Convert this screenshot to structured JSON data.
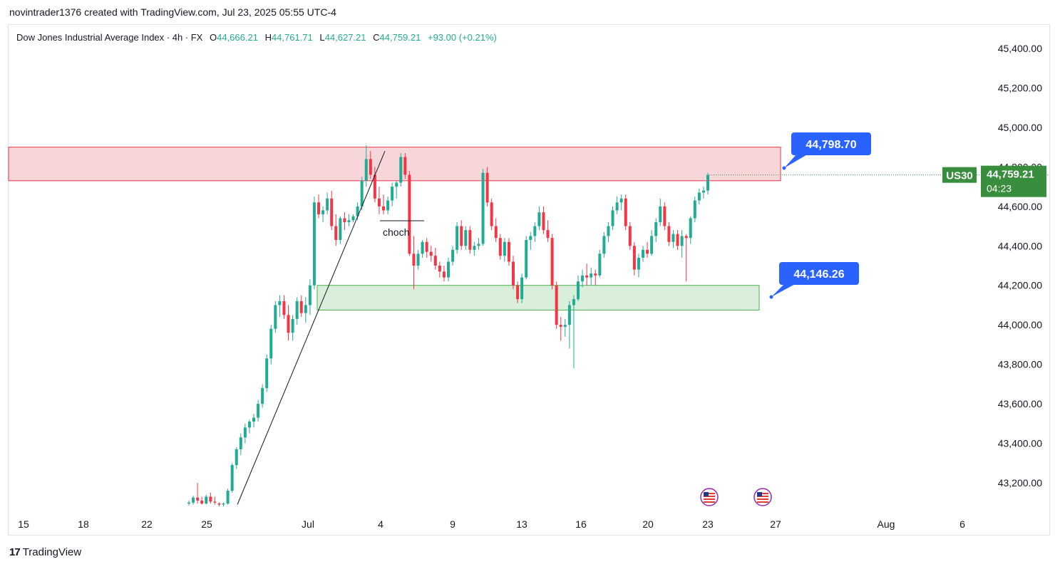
{
  "caption": "novintrader1376 created with TradingView.com, Jul 23, 2025 05:55 UTC-4",
  "legend": {
    "symbol": "Dow Jones Industrial Average Index · 4h · FX",
    "o_label": "O",
    "o": "44,666.21",
    "h_label": "H",
    "h": "44,761.71",
    "l_label": "L",
    "l": "44,627.21",
    "c_label": "C",
    "c": "44,759.21",
    "change": "+93.00 (+0.21%)"
  },
  "brand": "TradingView",
  "colors": {
    "up": "#22ab94",
    "down": "#f23645",
    "resistance_zone": "#f7d6d9",
    "support_zone": "#d9eedb",
    "label_bg": "#2962ff",
    "price_bg": "#388e3c"
  },
  "chart_data": {
    "type": "candlestick",
    "x_ticks": [
      "15",
      "18",
      "22",
      "25",
      "Jul",
      "4",
      "9",
      "13",
      "16",
      "20",
      "23",
      "27",
      "Aug",
      "6"
    ],
    "y_ticks": [
      "45,400.00",
      "45,200.00",
      "45,000.00",
      "44,800.00",
      "44,600.00",
      "44,400.00",
      "44,200.00",
      "44,000.00",
      "43,800.00",
      "43,600.00",
      "43,400.00",
      "43,200.00"
    ],
    "ylim": [
      43080,
      45530
    ],
    "current_price": {
      "symbol": "US30",
      "value": "44,759.21",
      "countdown": "04:23",
      "price": 44759.21
    },
    "zones": [
      {
        "kind": "resistance",
        "low": 44730,
        "high": 44900
      },
      {
        "kind": "support",
        "low": 44075,
        "high": 44200
      }
    ],
    "price_labels": [
      {
        "text": "44,798.70",
        "price": 44798.7
      },
      {
        "text": "44,146.26",
        "price": 44146.26
      }
    ],
    "annotations": [
      {
        "text": "choch",
        "price": 44525
      }
    ],
    "trendline": {
      "from": 43090,
      "to": 44880
    },
    "candles": [
      [
        43095,
        43110,
        43085,
        43100
      ],
      [
        43100,
        43135,
        43090,
        43125
      ],
      [
        43125,
        43200,
        43095,
        43110
      ],
      [
        43110,
        43130,
        43090,
        43095
      ],
      [
        43095,
        43140,
        43090,
        43130
      ],
      [
        43130,
        43150,
        43095,
        43105
      ],
      [
        43105,
        43130,
        43090,
        43100
      ],
      [
        43095,
        43100,
        43080,
        43090
      ],
      [
        43090,
        43100,
        43080,
        43095
      ],
      [
        43095,
        43170,
        43090,
        43160
      ],
      [
        43160,
        43300,
        43150,
        43290
      ],
      [
        43290,
        43380,
        43270,
        43370
      ],
      [
        43370,
        43450,
        43340,
        43430
      ],
      [
        43430,
        43500,
        43400,
        43480
      ],
      [
        43480,
        43520,
        43450,
        43510
      ],
      [
        43510,
        43550,
        43480,
        43530
      ],
      [
        43530,
        43620,
        43510,
        43600
      ],
      [
        43600,
        43700,
        43580,
        43680
      ],
      [
        43680,
        43850,
        43660,
        43830
      ],
      [
        43830,
        44000,
        43800,
        43980
      ],
      [
        43980,
        44120,
        43960,
        44100
      ],
      [
        44100,
        44150,
        44040,
        44120
      ],
      [
        44120,
        44150,
        44030,
        44050
      ],
      [
        44050,
        44100,
        43920,
        43960
      ],
      [
        43960,
        44050,
        43920,
        44030
      ],
      [
        44030,
        44140,
        44000,
        44120
      ],
      [
        44120,
        44150,
        44040,
        44060
      ],
      [
        44060,
        44140,
        44010,
        44100
      ],
      [
        44100,
        44230,
        44050,
        44200
      ],
      [
        44200,
        44650,
        44180,
        44620
      ],
      [
        44620,
        44660,
        44540,
        44560
      ],
      [
        44560,
        44600,
        44520,
        44580
      ],
      [
        44580,
        44670,
        44560,
        44640
      ],
      [
        44640,
        44680,
        44480,
        44500
      ],
      [
        44500,
        44560,
        44400,
        44430
      ],
      [
        44430,
        44550,
        44410,
        44540
      ],
      [
        44540,
        44570,
        44480,
        44520
      ],
      [
        44520,
        44560,
        44500,
        44530
      ],
      [
        44530,
        44560,
        44520,
        44550
      ],
      [
        44550,
        44620,
        44530,
        44600
      ],
      [
        44600,
        44750,
        44580,
        44730
      ],
      [
        44730,
        44910,
        44700,
        44840
      ],
      [
        44840,
        44880,
        44740,
        44760
      ],
      [
        44760,
        44800,
        44620,
        44640
      ],
      [
        44640,
        44700,
        44560,
        44600
      ],
      [
        44600,
        44660,
        44560,
        44580
      ],
      [
        44580,
        44650,
        44560,
        44630
      ],
      [
        44630,
        44720,
        44600,
        44700
      ],
      [
        44700,
        44730,
        44640,
        44720
      ],
      [
        44720,
        44870,
        44700,
        44850
      ],
      [
        44850,
        44870,
        44740,
        44760
      ],
      [
        44760,
        44780,
        44350,
        44360
      ],
      [
        44360,
        44450,
        44180,
        44300
      ],
      [
        44300,
        44380,
        44280,
        44360
      ],
      [
        44360,
        44430,
        44340,
        44420
      ],
      [
        44420,
        44440,
        44340,
        44370
      ],
      [
        44370,
        44400,
        44320,
        44350
      ],
      [
        44350,
        44390,
        44280,
        44300
      ],
      [
        44300,
        44320,
        44240,
        44270
      ],
      [
        44270,
        44300,
        44220,
        44240
      ],
      [
        44240,
        44340,
        44220,
        44320
      ],
      [
        44320,
        44400,
        44300,
        44380
      ],
      [
        44380,
        44520,
        44360,
        44500
      ],
      [
        44500,
        44530,
        44380,
        44400
      ],
      [
        44400,
        44500,
        44380,
        44480
      ],
      [
        44480,
        44500,
        44360,
        44380
      ],
      [
        44380,
        44420,
        44350,
        44400
      ],
      [
        44400,
        44440,
        44380,
        44410
      ],
      [
        44410,
        44790,
        44400,
        44770
      ],
      [
        44770,
        44800,
        44600,
        44620
      ],
      [
        44620,
        44640,
        44480,
        44500
      ],
      [
        44500,
        44540,
        44420,
        44440
      ],
      [
        44440,
        44460,
        44330,
        44350
      ],
      [
        44350,
        44440,
        44320,
        44420
      ],
      [
        44420,
        44440,
        44300,
        44320
      ],
      [
        44320,
        44350,
        44180,
        44200
      ],
      [
        44200,
        44220,
        44110,
        44130
      ],
      [
        44130,
        44260,
        44110,
        44240
      ],
      [
        44240,
        44450,
        44230,
        44430
      ],
      [
        44430,
        44470,
        44380,
        44450
      ],
      [
        44450,
        44520,
        44420,
        44500
      ],
      [
        44500,
        44600,
        44480,
        44570
      ],
      [
        44570,
        44600,
        44460,
        44480
      ],
      [
        44480,
        44530,
        44420,
        44440
      ],
      [
        44440,
        44460,
        44180,
        44200
      ],
      [
        44200,
        44220,
        43980,
        44000
      ],
      [
        44000,
        44040,
        43920,
        43990
      ],
      [
        43990,
        44030,
        43940,
        44000
      ],
      [
        44000,
        44120,
        43880,
        44100
      ],
      [
        44100,
        44150,
        43780,
        44130
      ],
      [
        44130,
        44250,
        44120,
        44220
      ],
      [
        44220,
        44280,
        44190,
        44250
      ],
      [
        44250,
        44310,
        44200,
        44240
      ],
      [
        44240,
        44290,
        44200,
        44260
      ],
      [
        44260,
        44280,
        44200,
        44250
      ],
      [
        44250,
        44380,
        44240,
        44360
      ],
      [
        44360,
        44470,
        44340,
        44450
      ],
      [
        44450,
        44520,
        44420,
        44500
      ],
      [
        44500,
        44600,
        44480,
        44580
      ],
      [
        44580,
        44650,
        44560,
        44620
      ],
      [
        44620,
        44660,
        44580,
        44640
      ],
      [
        44640,
        44660,
        44480,
        44500
      ],
      [
        44500,
        44520,
        44380,
        44400
      ],
      [
        44400,
        44420,
        44250,
        44280
      ],
      [
        44280,
        44360,
        44240,
        44340
      ],
      [
        44340,
        44400,
        44320,
        44380
      ],
      [
        44380,
        44420,
        44340,
        44360
      ],
      [
        44360,
        44480,
        44350,
        44450
      ],
      [
        44450,
        44540,
        44420,
        44520
      ],
      [
        44520,
        44640,
        44500,
        44600
      ],
      [
        44600,
        44620,
        44480,
        44500
      ],
      [
        44500,
        44520,
        44400,
        44420
      ],
      [
        44420,
        44480,
        44390,
        44460
      ],
      [
        44460,
        44480,
        44380,
        44400
      ],
      [
        44400,
        44480,
        44340,
        44450
      ],
      [
        44450,
        44460,
        44220,
        44440
      ],
      [
        44440,
        44550,
        44410,
        44540
      ],
      [
        44540,
        44650,
        44520,
        44630
      ],
      [
        44630,
        44690,
        44610,
        44670
      ],
      [
        44670,
        44700,
        44640,
        44680
      ],
      [
        44680,
        44770,
        44660,
        44759
      ]
    ]
  }
}
